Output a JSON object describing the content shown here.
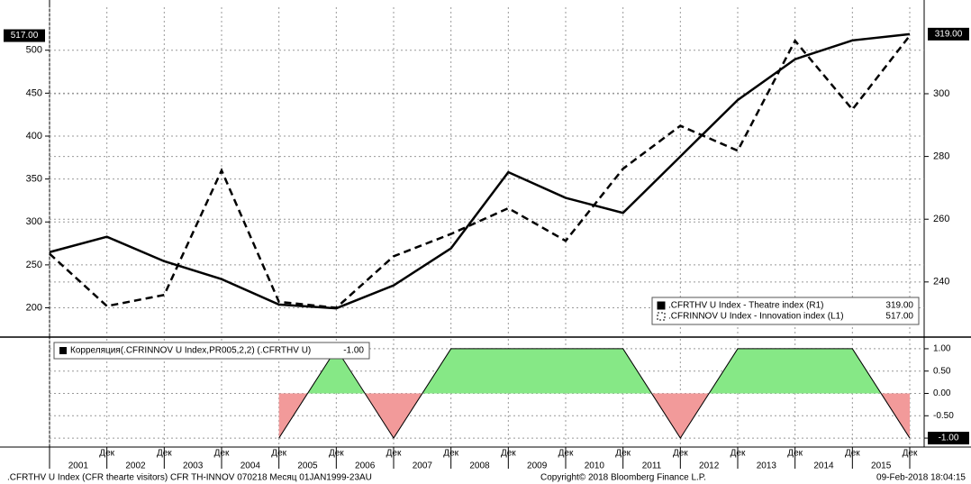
{
  "chart_data": [
    {
      "type": "line",
      "categories": [
        null,
        "Дек",
        "Дек",
        "Дек",
        "Дек",
        "Дек",
        "Дек",
        "Дек",
        "Дек",
        "Дек",
        "Дек",
        "Дек",
        "Дек",
        "Дек",
        "Дек",
        "Дек"
      ],
      "year_labels": [
        "2001",
        "2002",
        "2003",
        "2004",
        "2005",
        "2006",
        "2007",
        "2008",
        "2009",
        "2010",
        "2011",
        "2012",
        "2013",
        "2014",
        "2015"
      ],
      "series": [
        {
          "name": ".CFRTHV U Index - Theatre index (R1)",
          "value_label": "319.00",
          "axis": "y2",
          "color": "#000000",
          "dashed": false,
          "values": [
            249.5,
            254.4,
            246.6,
            240.9,
            232.8,
            231.6,
            238.9,
            250.7,
            275,
            266.8,
            262,
            280,
            298,
            311,
            317,
            319
          ]
        },
        {
          "name": ".CFRINNOV U Index - Innovation index (L1)",
          "value_label": "517.00",
          "axis": "y",
          "color": "#000000",
          "dashed": true,
          "values": [
            263,
            202,
            215,
            360,
            207,
            200,
            260,
            286,
            316,
            278,
            362,
            412,
            383,
            511,
            431,
            517
          ]
        }
      ],
      "ylim": [
        168,
        548
      ],
      "yticks": [
        200,
        250,
        300,
        350,
        400,
        450,
        500
      ],
      "y2lim": [
        223,
        327
      ],
      "y2ticks": [
        240,
        260,
        280,
        300
      ],
      "grid": true
    },
    {
      "type": "area",
      "series": [
        {
          "name": "Корреляция(.CFRINNOV U Index,PR005,2,2) (.CFRTHV U)",
          "value_label": "-1.00",
          "color": "#000000",
          "positive_color": "#86e886",
          "negative_color": "#f29a9a",
          "values": [
            null,
            null,
            null,
            null,
            -1,
            1,
            -1,
            1,
            1,
            1,
            1,
            -1,
            1,
            1,
            1,
            -1
          ]
        }
      ],
      "ylim": [
        -1.18,
        1.18
      ],
      "yticks": [
        {
          "value": 1,
          "label": "1.00"
        },
        {
          "value": 0.5,
          "label": "0.50"
        },
        {
          "value": 0,
          "label": "0.00"
        },
        {
          "value": -0.5,
          "label": "-0.50"
        },
        {
          "value": -1,
          "label": "-1.00"
        }
      ],
      "grid": true
    }
  ],
  "footer": {
    "left": ".CFRTHV U Index (CFR thearte visitors) CFR TH-INNOV 070218  Месяц 01JAN1999-23AU",
    "center": "Copyright© 2018 Bloomberg Finance L.P.",
    "right": "09-Feb-2018 18:04:15"
  }
}
